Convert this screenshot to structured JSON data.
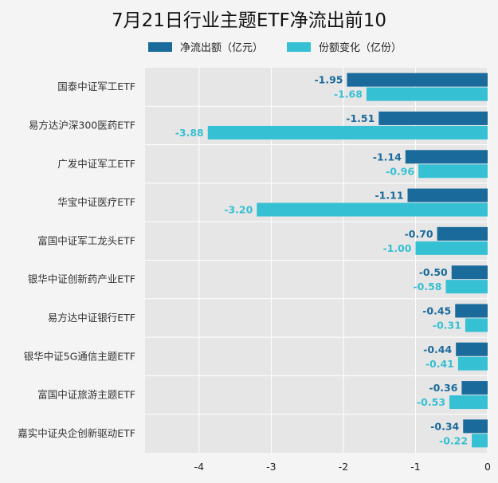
{
  "chart_data": {
    "type": "bar",
    "orientation": "horizontal",
    "title": "7月21日行业主题ETF净流出前10",
    "categories": [
      "国泰中证军工ETF",
      "易方达沪深300医药ETF",
      "广发中证军工ETF",
      "华宝中证医疗ETF",
      "富国中证军工龙头ETF",
      "银华中证创新药产业ETF",
      "易方达中证银行ETF",
      "银华中证5G通信主题ETF",
      "富国中证旅游主题ETF",
      "嘉实中证央企创新驱动ETF"
    ],
    "series": [
      {
        "name": "净流出额（亿元）",
        "color": "#1a6b9b",
        "values": [
          -1.95,
          -1.51,
          -1.14,
          -1.11,
          -0.7,
          -0.5,
          -0.45,
          -0.44,
          -0.36,
          -0.34
        ],
        "labels": [
          "-1.95",
          "-1.51",
          "-1.14",
          "-1.11",
          "-0.70",
          "-0.50",
          "-0.45",
          "-0.44",
          "-0.36",
          "-0.34"
        ]
      },
      {
        "name": "份额变化（亿份）",
        "color": "#36c0d3",
        "values": [
          -1.68,
          -3.88,
          -0.96,
          -3.2,
          -1.0,
          -0.58,
          -0.31,
          -0.41,
          -0.53,
          -0.22
        ],
        "labels": [
          "-1.68",
          "-3.88",
          "-0.96",
          "-3.20",
          "-1.00",
          "-0.58",
          "-0.31",
          "-0.41",
          "-0.53",
          "-0.22"
        ]
      }
    ],
    "xlim": [
      -4.75,
      0
    ],
    "xticks": [
      -4,
      -3,
      -2,
      -1,
      0
    ],
    "xtick_labels": [
      "-4",
      "-3",
      "-2",
      "-1",
      "0"
    ],
    "grid": true,
    "legend_position": "top",
    "plot_background": "#e6e6e6"
  }
}
